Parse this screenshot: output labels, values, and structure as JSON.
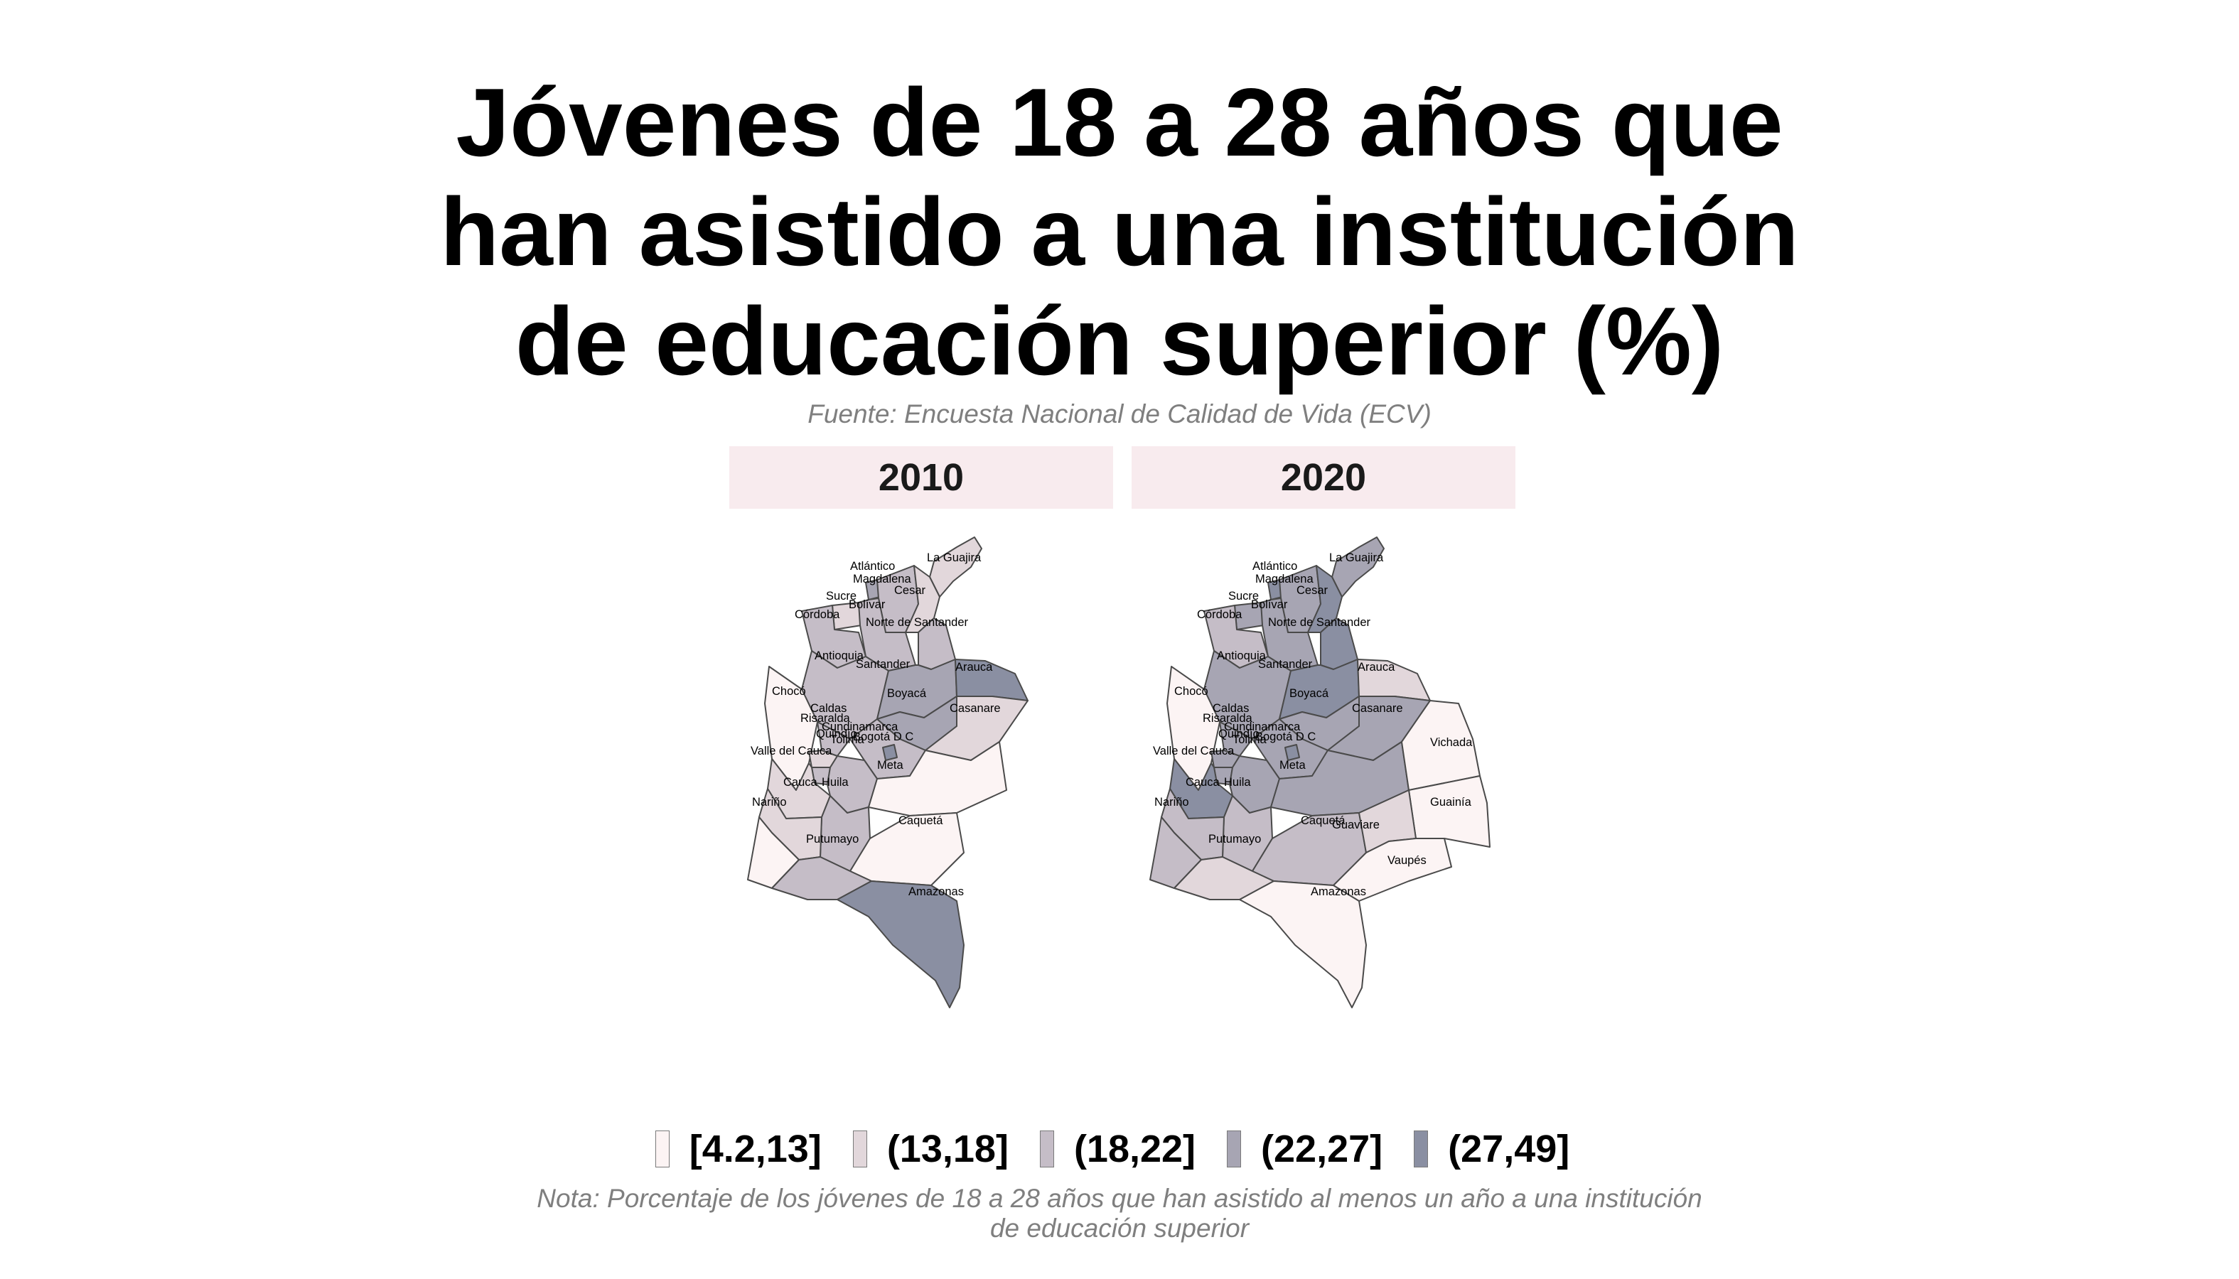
{
  "title": {
    "line1": "Jóvenes de 18 a 28 años que",
    "line2": "han asistido a una institución",
    "line3": "de educación superior (%)"
  },
  "source": "Fuente: Encuesta Nacional de Calidad de Vida (ECV)",
  "note": {
    "line1": "Nota: Porcentaje de los jóvenes de 18 a 28 años que han asistido al menos un año a una institución",
    "line2": "de educación superior"
  },
  "colors": {
    "c1": "#fcf4f4",
    "c2": "#e2d7db",
    "c3": "#c5bdc7",
    "c4": "#a7a5b3",
    "c5": "#8a8fa2",
    "panel_header_bg": "#f8ebee"
  },
  "legend": [
    {
      "label": "[4.2,13]",
      "class": 1
    },
    {
      "label": "(13,18]",
      "class": 2
    },
    {
      "label": "(18,22]",
      "class": 3
    },
    {
      "label": "(22,27]",
      "class": 4
    },
    {
      "label": "(27,49]",
      "class": 5
    }
  ],
  "chart_data": {
    "type": "choropleth",
    "variable": "Jóvenes de 18 a 28 años que han asistido a una institución de educación superior (%)",
    "bins": [
      "[4.2,13]",
      "(13,18]",
      "(18,22]",
      "(22,27]",
      "(27,49]"
    ],
    "panels": [
      {
        "year": "2010",
        "classes": {
          "La Guajira": 2,
          "Atlántico": 4,
          "Magdalena": 3,
          "Cesar": 2,
          "Sucre": 2,
          "Bolívar": 3,
          "Córdoba": 3,
          "Norte de Santander": 3,
          "Antioquia": 3,
          "Santander": 4,
          "Arauca": 5,
          "Boyacá": 4,
          "Casanare": 2,
          "Chocó": 1,
          "Caldas": 3,
          "Risaralda": 2,
          "Cundinamarca": 3,
          "Bogotá D C": 5,
          "Quindío": 3,
          "Tolima": 3,
          "Valle del Cauca": 2,
          "Meta": 1,
          "Huila": 3,
          "Cauca": 2,
          "Nariño": 1,
          "Caquetá": 1,
          "Putumayo": 3,
          "Amazonas": 5
        }
      },
      {
        "year": "2020",
        "classes": {
          "La Guajira": 4,
          "Atlántico": 5,
          "Magdalena": 4,
          "Cesar": 5,
          "Sucre": 4,
          "Bolívar": 4,
          "Córdoba": 3,
          "Norte de Santander": 5,
          "Antioquia": 4,
          "Santander": 5,
          "Arauca": 2,
          "Boyacá": 4,
          "Casanare": 4,
          "Chocó": 1,
          "Caldas": 4,
          "Risaralda": 4,
          "Cundinamarca": 4,
          "Bogotá D C": 5,
          "Quindío": 4,
          "Tolima": 4,
          "Valle del Cauca": 5,
          "Meta": 4,
          "Huila": 3,
          "Cauca": 3,
          "Nariño": 3,
          "Caquetá": 3,
          "Putumayo": 2,
          "Amazonas": 1,
          "Vichada": 1,
          "Guainía": 1,
          "Guaviare": 2,
          "Vaupés": 1
        }
      }
    ]
  }
}
